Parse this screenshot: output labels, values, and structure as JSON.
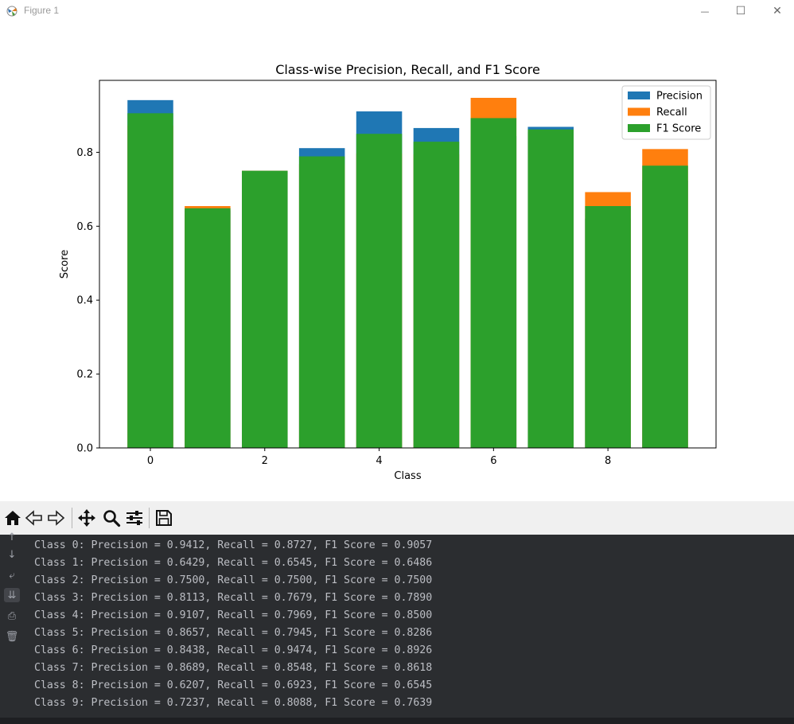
{
  "window": {
    "title": "Figure 1",
    "minimize_glyph": "—",
    "maximize_glyph": "☐",
    "close_glyph": "✕"
  },
  "chart_data": {
    "type": "bar",
    "title": "Class-wise Precision, Recall, and F1 Score",
    "xlabel": "Class",
    "ylabel": "Score",
    "categories": [
      0,
      1,
      2,
      3,
      4,
      5,
      6,
      7,
      8,
      9
    ],
    "xticks": [
      "0",
      "2",
      "4",
      "6",
      "8"
    ],
    "xtick_values": [
      0,
      2,
      4,
      6,
      8
    ],
    "yticks": [
      "0.0",
      "0.2",
      "0.4",
      "0.6",
      "0.8"
    ],
    "ytick_values": [
      0,
      0.2,
      0.4,
      0.6,
      0.8
    ],
    "ylim": [
      0,
      0.9947
    ],
    "xlim": [
      -0.89,
      9.89
    ],
    "overlaid": true,
    "legend_position": "top-right",
    "series": [
      {
        "name": "Precision",
        "color": "#1f77b4",
        "values": [
          0.9412,
          0.6429,
          0.75,
          0.8113,
          0.9107,
          0.8657,
          0.8438,
          0.8689,
          0.6207,
          0.7237
        ]
      },
      {
        "name": "Recall",
        "color": "#ff7f0e",
        "values": [
          0.8727,
          0.6545,
          0.75,
          0.7679,
          0.7969,
          0.7945,
          0.9474,
          0.8548,
          0.6923,
          0.8088
        ]
      },
      {
        "name": "F1 Score",
        "color": "#2ca02c",
        "values": [
          0.9057,
          0.6486,
          0.75,
          0.789,
          0.85,
          0.8286,
          0.8926,
          0.8618,
          0.6545,
          0.7639
        ]
      }
    ]
  },
  "toolbar": {
    "buttons": [
      {
        "name": "home-icon",
        "tip": "Home"
      },
      {
        "name": "back-icon",
        "tip": "Back"
      },
      {
        "name": "forward-icon",
        "tip": "Forward"
      },
      {
        "name": "pan-icon",
        "tip": "Pan"
      },
      {
        "name": "zoom-icon",
        "tip": "Zoom"
      },
      {
        "name": "configure-subplots-icon",
        "tip": "Subplots"
      },
      {
        "name": "save-icon",
        "tip": "Save"
      }
    ]
  },
  "console": {
    "gutter_icons": [
      "scroll-up-icon",
      "scroll-down-icon",
      "soft-wrap-icon",
      "scroll-to-end-icon",
      "print-icon",
      "clear-all-icon"
    ],
    "lines": [
      "Class 0: Precision = 0.9412, Recall = 0.8727, F1 Score = 0.9057",
      "Class 1: Precision = 0.6429, Recall = 0.6545, F1 Score = 0.6486",
      "Class 2: Precision = 0.7500, Recall = 0.7500, F1 Score = 0.7500",
      "Class 3: Precision = 0.8113, Recall = 0.7679, F1 Score = 0.7890",
      "Class 4: Precision = 0.9107, Recall = 0.7969, F1 Score = 0.8500",
      "Class 5: Precision = 0.8657, Recall = 0.7945, F1 Score = 0.8286",
      "Class 6: Precision = 0.8438, Recall = 0.9474, F1 Score = 0.8926",
      "Class 7: Precision = 0.8689, Recall = 0.8548, F1 Score = 0.8618",
      "Class 8: Precision = 0.6207, Recall = 0.6923, F1 Score = 0.6545",
      "Class 9: Precision = 0.7237, Recall = 0.8088, F1 Score = 0.7639"
    ]
  }
}
